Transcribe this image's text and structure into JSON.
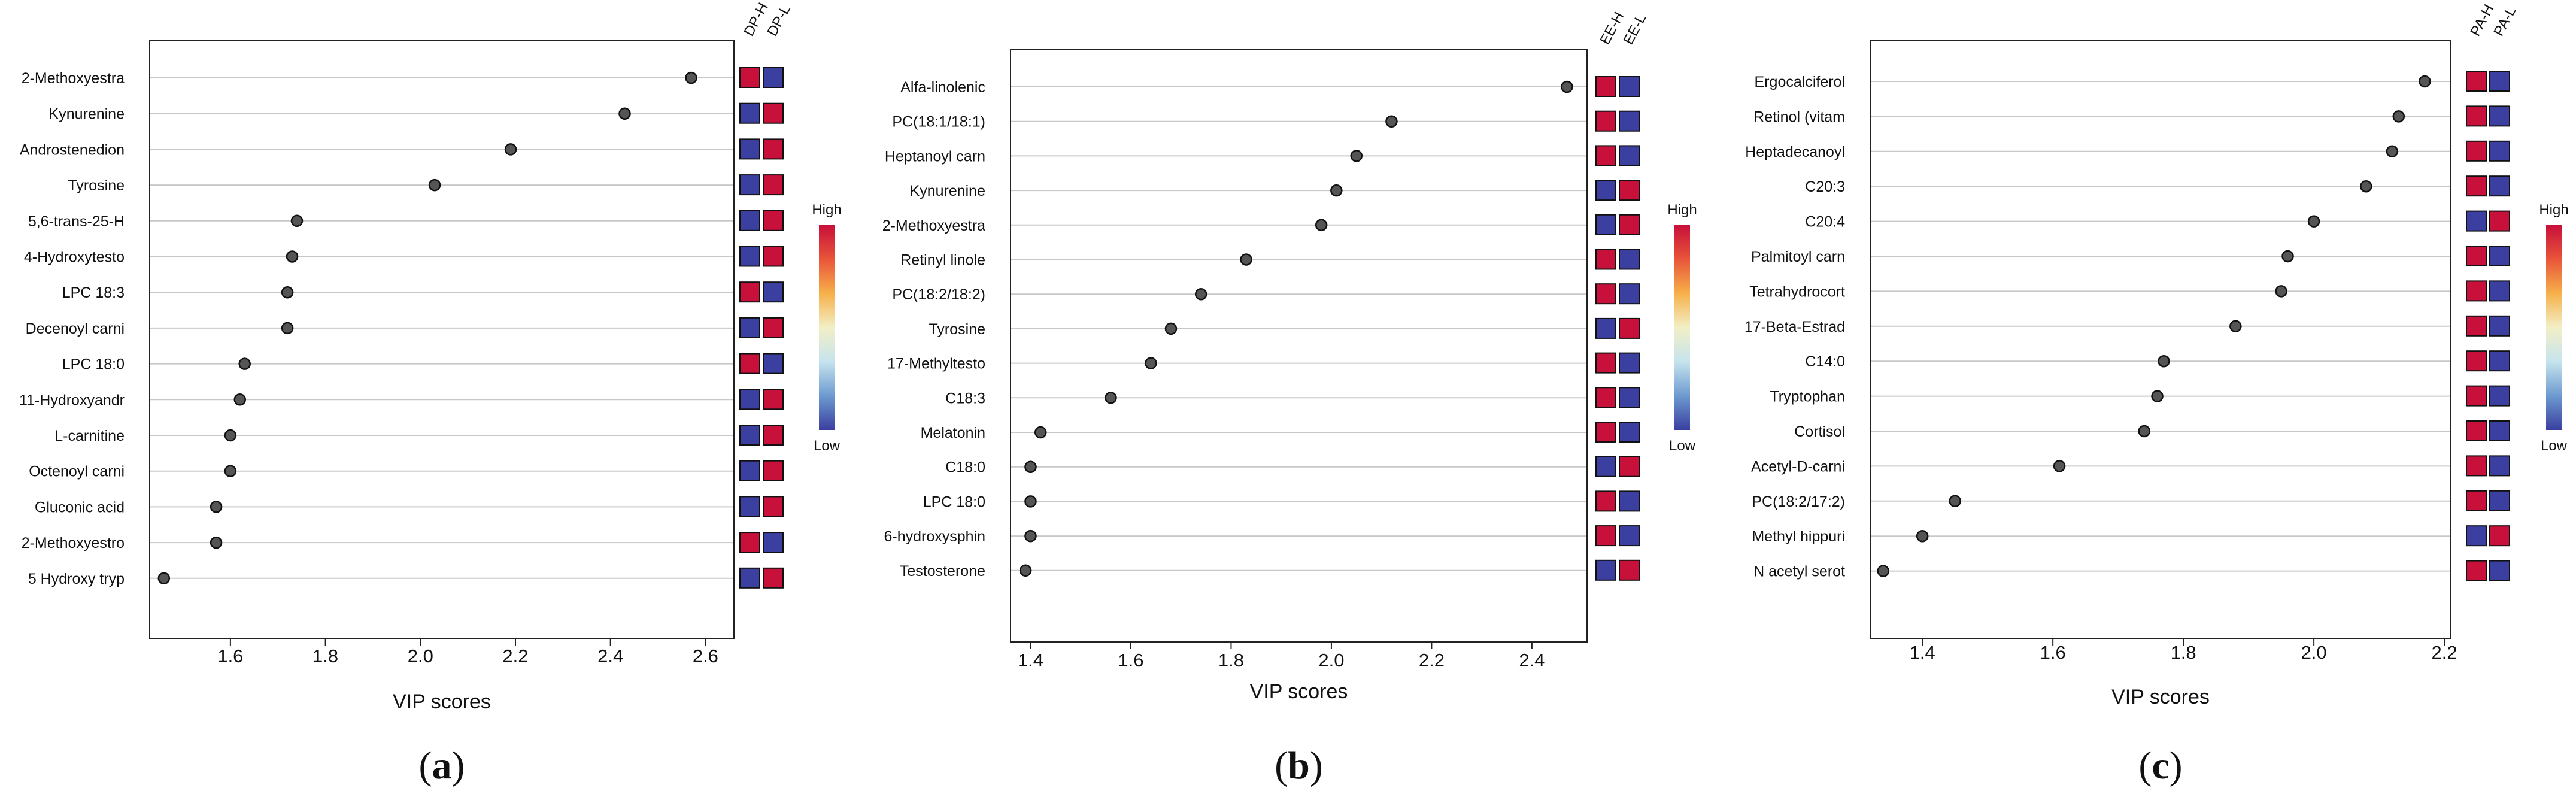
{
  "figure": {
    "panels": [
      {
        "id": "a",
        "letter_open": "(",
        "letter": "a",
        "letter_close": ")",
        "xlabel": "VIP scores",
        "xticks": [
          1.6,
          1.8,
          2.0,
          2.2,
          2.4,
          2.6
        ],
        "xlim": [
          1.43,
          2.66
        ],
        "groups": [
          "DP-H",
          "DP-L"
        ],
        "scale_high": "High",
        "scale_low": "Low",
        "items": [
          {
            "label": "2-Methoxyestra",
            "vip": 2.57,
            "h": "high",
            "l": "low"
          },
          {
            "label": "Kynurenine",
            "vip": 2.43,
            "h": "low",
            "l": "high"
          },
          {
            "label": "Androstenedion",
            "vip": 2.19,
            "h": "low",
            "l": "high"
          },
          {
            "label": "Tyrosine",
            "vip": 2.03,
            "h": "low",
            "l": "high"
          },
          {
            "label": "5,6-trans-25-H",
            "vip": 1.74,
            "h": "low",
            "l": "high"
          },
          {
            "label": "4-Hydroxytesto",
            "vip": 1.73,
            "h": "low",
            "l": "high"
          },
          {
            "label": "LPC 18:3",
            "vip": 1.72,
            "h": "high",
            "l": "low"
          },
          {
            "label": "Decenoyl carni",
            "vip": 1.72,
            "h": "low",
            "l": "high"
          },
          {
            "label": "LPC 18:0",
            "vip": 1.63,
            "h": "high",
            "l": "low"
          },
          {
            "label": "11-Hydroxyandr",
            "vip": 1.62,
            "h": "low",
            "l": "high"
          },
          {
            "label": "L-carnitine",
            "vip": 1.6,
            "h": "low",
            "l": "high"
          },
          {
            "label": "Octenoyl carni",
            "vip": 1.6,
            "h": "low",
            "l": "high"
          },
          {
            "label": "Gluconic acid",
            "vip": 1.57,
            "h": "low",
            "l": "high"
          },
          {
            "label": "2-Methoxyestro",
            "vip": 1.57,
            "h": "high",
            "l": "low"
          },
          {
            "label": "5 Hydroxy tryp",
            "vip": 1.46,
            "h": "low",
            "l": "high"
          }
        ]
      },
      {
        "id": "b",
        "letter_open": "(",
        "letter": "b",
        "letter_close": ")",
        "xlabel": "VIP scores",
        "xticks": [
          1.4,
          1.6,
          1.8,
          2.0,
          2.2,
          2.4
        ],
        "xlim": [
          1.36,
          2.51
        ],
        "groups": [
          "EE-H",
          "EE-L"
        ],
        "scale_high": "High",
        "scale_low": "Low",
        "items": [
          {
            "label": "Alfa-linolenic",
            "vip": 2.47,
            "h": "high",
            "l": "low"
          },
          {
            "label": "PC(18:1/18:1)",
            "vip": 2.12,
            "h": "high",
            "l": "low"
          },
          {
            "label": "Heptanoyl carn",
            "vip": 2.05,
            "h": "high",
            "l": "low"
          },
          {
            "label": "Kynurenine",
            "vip": 2.01,
            "h": "low",
            "l": "high"
          },
          {
            "label": "2-Methoxyestra",
            "vip": 1.98,
            "h": "low",
            "l": "high"
          },
          {
            "label": "Retinyl linole",
            "vip": 1.83,
            "h": "high",
            "l": "low"
          },
          {
            "label": "PC(18:2/18:2)",
            "vip": 1.74,
            "h": "high",
            "l": "low"
          },
          {
            "label": "Tyrosine",
            "vip": 1.68,
            "h": "low",
            "l": "high"
          },
          {
            "label": "17-Methyltesto",
            "vip": 1.64,
            "h": "high",
            "l": "low"
          },
          {
            "label": "C18:3",
            "vip": 1.56,
            "h": "high",
            "l": "low"
          },
          {
            "label": "Melatonin",
            "vip": 1.42,
            "h": "high",
            "l": "low"
          },
          {
            "label": "C18:0",
            "vip": 1.4,
            "h": "low",
            "l": "high"
          },
          {
            "label": "LPC 18:0",
            "vip": 1.4,
            "h": "high",
            "l": "low"
          },
          {
            "label": "6-hydroxysphin",
            "vip": 1.4,
            "h": "high",
            "l": "low"
          },
          {
            "label": "Testosterone",
            "vip": 1.39,
            "h": "low",
            "l": "high"
          }
        ]
      },
      {
        "id": "c",
        "letter_open": "(",
        "letter": "c",
        "letter_close": ")",
        "xlabel": "VIP scores",
        "xticks": [
          1.4,
          1.6,
          1.8,
          2.0,
          2.2
        ],
        "xlim": [
          1.32,
          2.21
        ],
        "groups": [
          "PA-H",
          "PA-L"
        ],
        "scale_high": "High",
        "scale_low": "Low",
        "items": [
          {
            "label": "Ergocalciferol",
            "vip": 2.17,
            "h": "high",
            "l": "low"
          },
          {
            "label": "Retinol (vitam",
            "vip": 2.13,
            "h": "high",
            "l": "low"
          },
          {
            "label": "Heptadecanoyl",
            "vip": 2.12,
            "h": "high",
            "l": "low"
          },
          {
            "label": "C20:3",
            "vip": 2.08,
            "h": "high",
            "l": "low"
          },
          {
            "label": "C20:4",
            "vip": 2.0,
            "h": "low",
            "l": "high"
          },
          {
            "label": "Palmitoyl carn",
            "vip": 1.96,
            "h": "high",
            "l": "low"
          },
          {
            "label": "Tetrahydrocort",
            "vip": 1.95,
            "h": "high",
            "l": "low"
          },
          {
            "label": "17-Beta-Estrad",
            "vip": 1.88,
            "h": "high",
            "l": "low"
          },
          {
            "label": "C14:0",
            "vip": 1.77,
            "h": "high",
            "l": "low"
          },
          {
            "label": "Tryptophan",
            "vip": 1.76,
            "h": "high",
            "l": "low"
          },
          {
            "label": "Cortisol",
            "vip": 1.74,
            "h": "high",
            "l": "low"
          },
          {
            "label": "Acetyl-D-carni",
            "vip": 1.61,
            "h": "high",
            "l": "low"
          },
          {
            "label": "PC(18:2/17:2)",
            "vip": 1.45,
            "h": "high",
            "l": "low"
          },
          {
            "label": "Methyl hippuri",
            "vip": 1.4,
            "h": "low",
            "l": "high"
          },
          {
            "label": "N acetyl serot",
            "vip": 1.34,
            "h": "high",
            "l": "low"
          }
        ]
      }
    ]
  },
  "colors": {
    "high": "#c7103a",
    "low": "#3a3fa0",
    "dot": "#555555",
    "gridline": "#c8c8c8",
    "gradient": [
      "#c7103a",
      "#e9553a",
      "#f6b04a",
      "#f2efc6",
      "#c6e4ee",
      "#6d9ad0",
      "#3a3fa0"
    ]
  },
  "chart_data": [
    {
      "type": "scatter",
      "title": "(a)",
      "xlabel": "VIP scores",
      "ylabel": "",
      "xlim": [
        1.43,
        2.66
      ],
      "categories": [
        "2-Methoxyestra",
        "Kynurenine",
        "Androstenedion",
        "Tyrosine",
        "5,6-trans-25-H",
        "4-Hydroxytesto",
        "LPC 18:3",
        "Decenoyl carni",
        "LPC 18:0",
        "11-Hydroxyandr",
        "L-carnitine",
        "Octenoyl carni",
        "Gluconic acid",
        "2-Methoxyestro",
        "5 Hydroxy tryp"
      ],
      "values": [
        2.57,
        2.43,
        2.19,
        2.03,
        1.74,
        1.73,
        1.72,
        1.72,
        1.63,
        1.62,
        1.6,
        1.6,
        1.57,
        1.57,
        1.46
      ],
      "legend": [
        "DP-H",
        "DP-L"
      ]
    },
    {
      "type": "scatter",
      "title": "(b)",
      "xlabel": "VIP scores",
      "ylabel": "",
      "xlim": [
        1.36,
        2.51
      ],
      "categories": [
        "Alfa-linolenic",
        "PC(18:1/18:1)",
        "Heptanoyl carn",
        "Kynurenine",
        "2-Methoxyestra",
        "Retinyl linole",
        "PC(18:2/18:2)",
        "Tyrosine",
        "17-Methyltesto",
        "C18:3",
        "Melatonin",
        "C18:0",
        "LPC 18:0",
        "6-hydroxysphin",
        "Testosterone"
      ],
      "values": [
        2.47,
        2.12,
        2.05,
        2.01,
        1.98,
        1.83,
        1.74,
        1.68,
        1.64,
        1.56,
        1.42,
        1.4,
        1.4,
        1.4,
        1.39
      ],
      "legend": [
        "EE-H",
        "EE-L"
      ]
    },
    {
      "type": "scatter",
      "title": "(c)",
      "xlabel": "VIP scores",
      "ylabel": "",
      "xlim": [
        1.32,
        2.21
      ],
      "categories": [
        "Ergocalciferol",
        "Retinol (vitam",
        "Heptadecanoyl",
        "C20:3",
        "C20:4",
        "Palmitoyl carn",
        "Tetrahydrocort",
        "17-Beta-Estrad",
        "C14:0",
        "Tryptophan",
        "Cortisol",
        "Acetyl-D-carni",
        "PC(18:2/17:2)",
        "Methyl hippuri",
        "N acetyl serot"
      ],
      "values": [
        2.17,
        2.13,
        2.12,
        2.08,
        2.0,
        1.96,
        1.95,
        1.88,
        1.77,
        1.76,
        1.74,
        1.61,
        1.45,
        1.4,
        1.34
      ],
      "legend": [
        "PA-H",
        "PA-L"
      ]
    }
  ]
}
